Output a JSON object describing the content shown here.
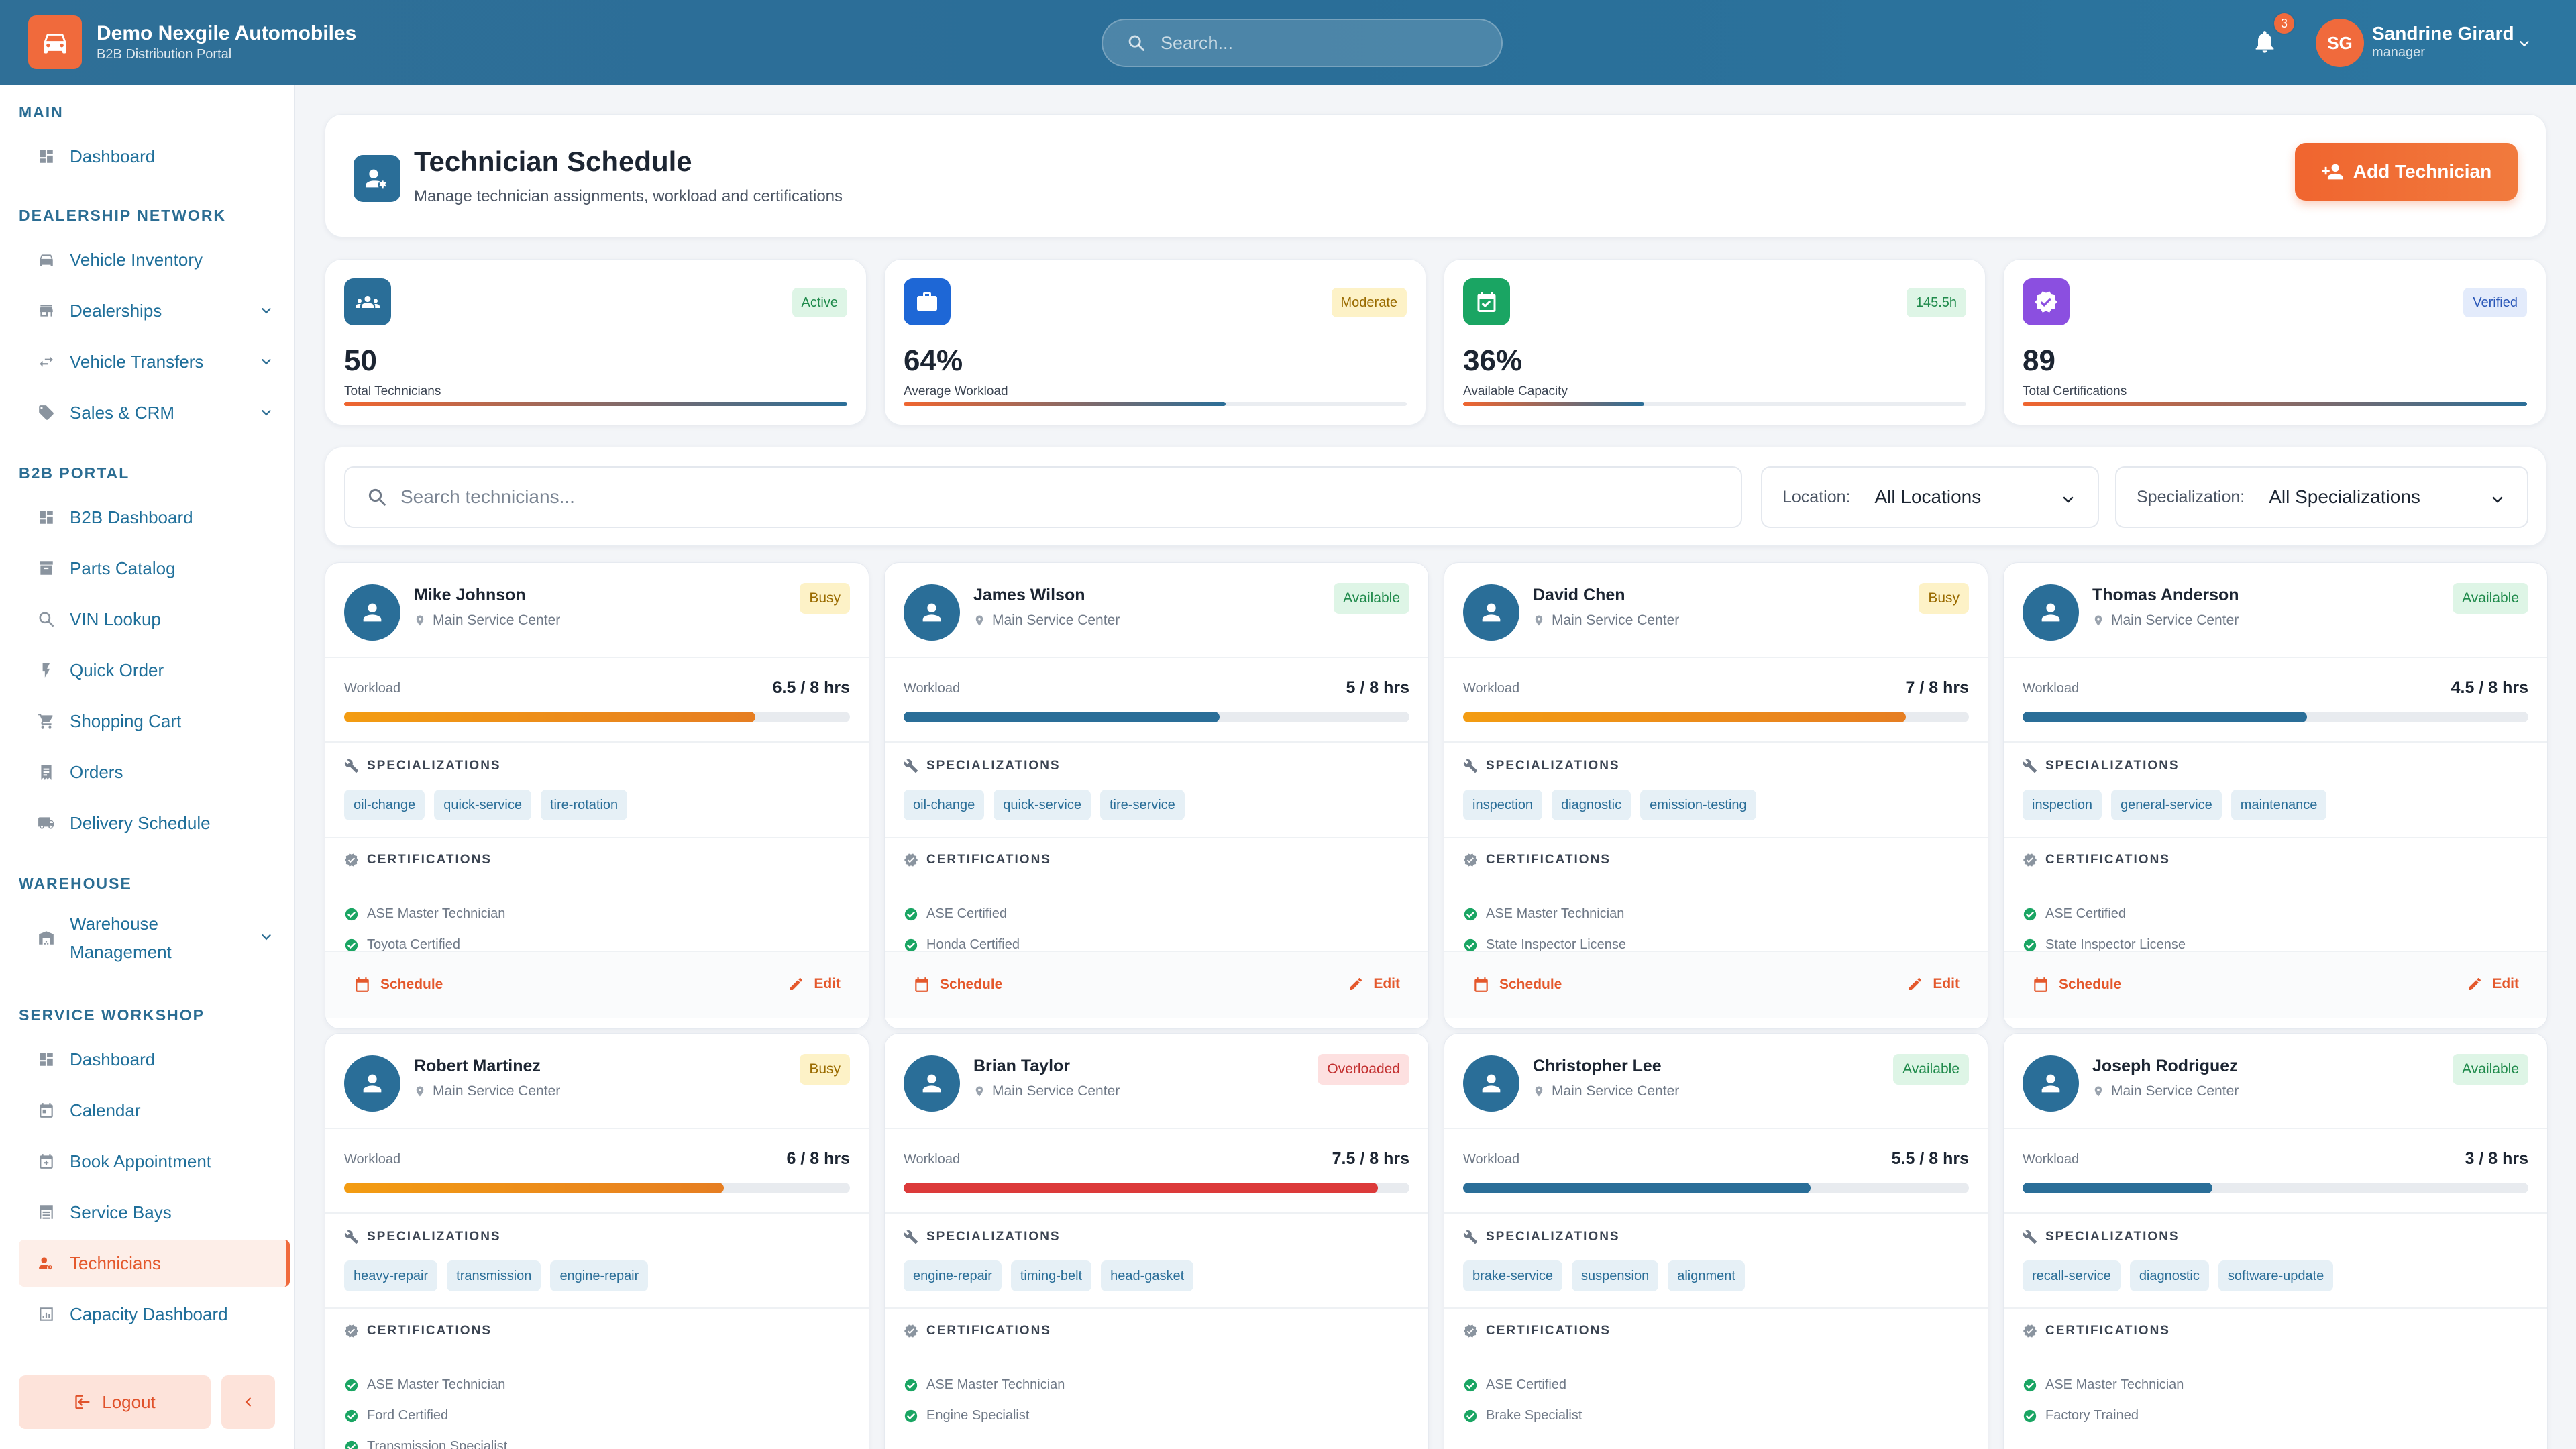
{
  "app": {
    "name": "Demo Nexgile Automobiles",
    "subtitle": "B2B Distribution Portal"
  },
  "header": {
    "search_placeholder": "Search...",
    "notification_count": "3",
    "user": {
      "initials": "SG",
      "name": "Sandrine Girard",
      "role": "manager"
    }
  },
  "sidebar": {
    "sections": {
      "main": "MAIN",
      "dealership": "DEALERSHIP NETWORK",
      "b2b": "B2B PORTAL",
      "warehouse": "WAREHOUSE",
      "service": "SERVICE WORKSHOP"
    },
    "items": {
      "dashboard": "Dashboard",
      "vehicle_inventory": "Vehicle Inventory",
      "dealerships": "Dealerships",
      "vehicle_transfers": "Vehicle Transfers",
      "sales_crm": "Sales & CRM",
      "b2b_dashboard": "B2B Dashboard",
      "parts_catalog": "Parts Catalog",
      "vin_lookup": "VIN Lookup",
      "quick_order": "Quick Order",
      "shopping_cart": "Shopping Cart",
      "orders": "Orders",
      "delivery_schedule": "Delivery Schedule",
      "warehouse_management": "Warehouse Management",
      "service_dashboard": "Dashboard",
      "calendar": "Calendar",
      "book_appointment": "Book Appointment",
      "service_bays": "Service Bays",
      "technicians": "Technicians",
      "capacity_dashboard": "Capacity Dashboard"
    },
    "logout": "Logout"
  },
  "page": {
    "title": "Technician Schedule",
    "subtitle": "Manage technician assignments, workload and certifications",
    "add_button": "Add Technician"
  },
  "stats": [
    {
      "value": "50",
      "label": "Total Technicians",
      "pill": "Active",
      "progress": 1.0
    },
    {
      "value": "64%",
      "label": "Average Workload",
      "pill": "Moderate",
      "progress": 0.64
    },
    {
      "value": "36%",
      "label": "Available Capacity",
      "pill": "145.5h",
      "progress": 0.36
    },
    {
      "value": "89",
      "label": "Total Certifications",
      "pill": "Verified",
      "progress": 1.0
    }
  ],
  "filters": {
    "search_placeholder": "Search technicians...",
    "location_label": "Location:",
    "location_value": "All Locations",
    "specialization_label": "Specialization:",
    "specialization_value": "All Specializations"
  },
  "card_labels": {
    "workload": "Workload",
    "specializations": "SPECIALIZATIONS",
    "certifications": "CERTIFICATIONS",
    "schedule": "Schedule",
    "edit": "Edit"
  },
  "technicians": [
    {
      "name": "Mike Johnson",
      "location": "Main Service Center",
      "status": "Busy",
      "workload": "6.5 / 8 hrs",
      "workload_fraction": 0.8125,
      "specializations": [
        "oil-change",
        "quick-service",
        "tire-rotation"
      ],
      "certifications": [
        "ASE Master Technician",
        "Toyota Certified"
      ]
    },
    {
      "name": "James Wilson",
      "location": "Main Service Center",
      "status": "Available",
      "workload": "5 / 8 hrs",
      "workload_fraction": 0.625,
      "specializations": [
        "oil-change",
        "quick-service",
        "tire-service"
      ],
      "certifications": [
        "ASE Certified",
        "Honda Certified"
      ]
    },
    {
      "name": "David Chen",
      "location": "Main Service Center",
      "status": "Busy",
      "workload": "7 / 8 hrs",
      "workload_fraction": 0.875,
      "specializations": [
        "inspection",
        "diagnostic",
        "emission-testing"
      ],
      "certifications": [
        "ASE Master Technician",
        "State Inspector License"
      ]
    },
    {
      "name": "Thomas Anderson",
      "location": "Main Service Center",
      "status": "Available",
      "workload": "4.5 / 8 hrs",
      "workload_fraction": 0.5625,
      "specializations": [
        "inspection",
        "general-service",
        "maintenance"
      ],
      "certifications": [
        "ASE Certified",
        "State Inspector License"
      ]
    },
    {
      "name": "Robert Martinez",
      "location": "Main Service Center",
      "status": "Busy",
      "workload": "6 / 8 hrs",
      "workload_fraction": 0.75,
      "specializations": [
        "heavy-repair",
        "transmission",
        "engine-repair"
      ],
      "certifications": [
        "ASE Master Technician",
        "Ford Certified",
        "Transmission Specialist"
      ]
    },
    {
      "name": "Brian Taylor",
      "location": "Main Service Center",
      "status": "Overloaded",
      "workload": "7.5 / 8 hrs",
      "workload_fraction": 0.9375,
      "specializations": [
        "engine-repair",
        "timing-belt",
        "head-gasket"
      ],
      "certifications": [
        "ASE Master Technician",
        "Engine Specialist"
      ]
    },
    {
      "name": "Christopher Lee",
      "location": "Main Service Center",
      "status": "Available",
      "workload": "5.5 / 8 hrs",
      "workload_fraction": 0.6875,
      "specializations": [
        "brake-service",
        "suspension",
        "alignment"
      ],
      "certifications": [
        "ASE Certified",
        "Brake Specialist"
      ]
    },
    {
      "name": "Joseph Rodriguez",
      "location": "Main Service Center",
      "status": "Available",
      "workload": "3 / 8 hrs",
      "workload_fraction": 0.375,
      "specializations": [
        "recall-service",
        "diagnostic",
        "software-update"
      ],
      "certifications": [
        "ASE Master Technician",
        "Factory Trained"
      ]
    }
  ]
}
